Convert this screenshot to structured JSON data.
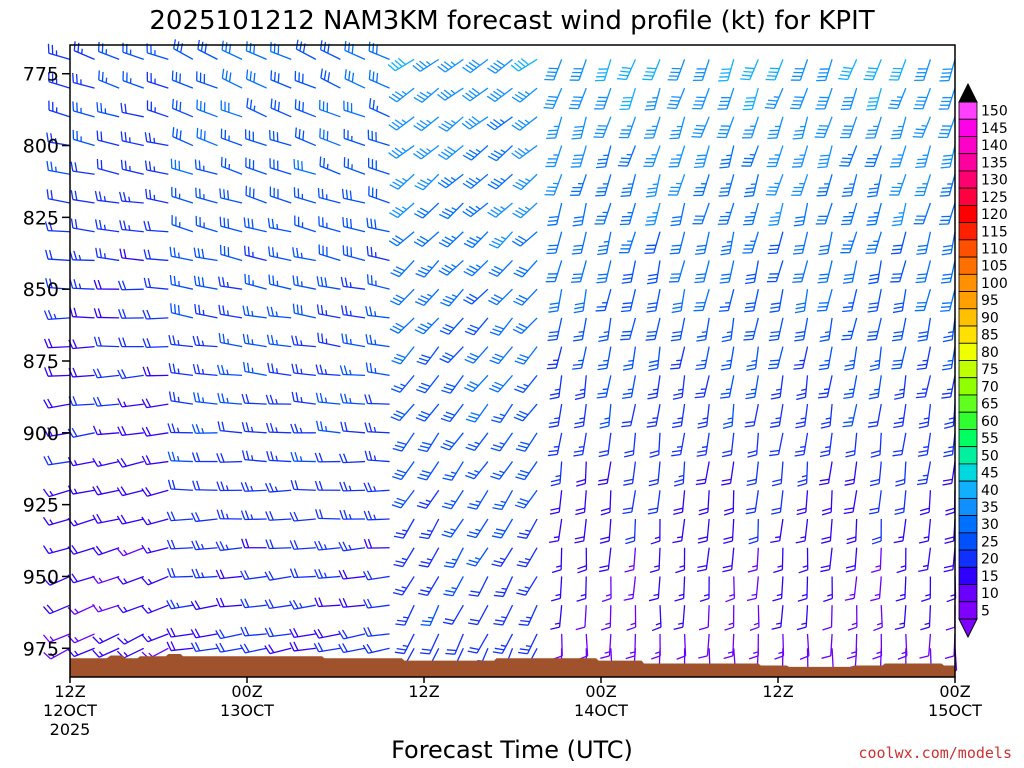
{
  "chart_data": {
    "type": "wind-profile",
    "title": "2025101212 NAM3KM forecast wind profile (kt) for KPIT",
    "xlabel": "Forecast Time (UTC)",
    "ylabel": "",
    "x_hours": [
      0,
      72
    ],
    "ylim": [
      985,
      765
    ],
    "y_ticks": [
      {
        "value": 775,
        "label": "775"
      },
      {
        "value": 800,
        "label": "800"
      },
      {
        "value": 825,
        "label": "825"
      },
      {
        "value": 850,
        "label": "850"
      },
      {
        "value": 875,
        "label": "875"
      },
      {
        "value": 900,
        "label": "900"
      },
      {
        "value": 925,
        "label": "925"
      },
      {
        "value": 950,
        "label": "950"
      },
      {
        "value": 975,
        "label": "975"
      }
    ],
    "x_ticks": [
      {
        "hour": 0,
        "line1": "12Z",
        "line2": "12OCT",
        "line3": "2025"
      },
      {
        "hour": 14.4,
        "line1": "00Z",
        "line2": "13OCT",
        "line3": ""
      },
      {
        "hour": 28.8,
        "line1": "12Z",
        "line2": "",
        "line3": ""
      },
      {
        "hour": 43.2,
        "line1": "00Z",
        "line2": "14OCT",
        "line3": ""
      },
      {
        "hour": 57.6,
        "line1": "12Z",
        "line2": "",
        "line3": ""
      },
      {
        "hour": 72,
        "line1": "00Z",
        "line2": "15OCT",
        "line3": ""
      }
    ],
    "colorbar": {
      "values": [
        5,
        10,
        15,
        20,
        25,
        30,
        35,
        40,
        45,
        50,
        55,
        60,
        65,
        70,
        75,
        80,
        85,
        90,
        95,
        100,
        105,
        110,
        115,
        120,
        125,
        130,
        135,
        140,
        145,
        150
      ],
      "colors": [
        "#8000ff",
        "#6a00ff",
        "#3000ff",
        "#1030ff",
        "#0050ff",
        "#0070ff",
        "#1090ff",
        "#10b0ff",
        "#00d8e0",
        "#00f0a0",
        "#00ff60",
        "#30ff30",
        "#60ff20",
        "#90ff00",
        "#c0ff00",
        "#f0ff00",
        "#ffe000",
        "#ffc000",
        "#ffa000",
        "#ff9000",
        "#ff7000",
        "#ff5000",
        "#ff2000",
        "#ff0000",
        "#ff0040",
        "#ff0070",
        "#ff00a0",
        "#ff00c8",
        "#ff00e8",
        "#ff40ff"
      ]
    },
    "surface_pressure": [
      {
        "hour": 0,
        "p": 978.5
      },
      {
        "hour": 3,
        "p": 978.5
      },
      {
        "hour": 3.3,
        "p": 977.5
      },
      {
        "hour": 4.3,
        "p": 977.5
      },
      {
        "hour": 4.5,
        "p": 978.5
      },
      {
        "hour": 5.5,
        "p": 978.5
      },
      {
        "hour": 5.7,
        "p": 977.8
      },
      {
        "hour": 7.8,
        "p": 977.8
      },
      {
        "hour": 8,
        "p": 977
      },
      {
        "hour": 9,
        "p": 977
      },
      {
        "hour": 9.2,
        "p": 977.8
      },
      {
        "hour": 20.5,
        "p": 977.8
      },
      {
        "hour": 20.7,
        "p": 978.5
      },
      {
        "hour": 27,
        "p": 978.5
      },
      {
        "hour": 27.2,
        "p": 979.3
      },
      {
        "hour": 34.5,
        "p": 979.3
      },
      {
        "hour": 34.7,
        "p": 978.5
      },
      {
        "hour": 42.8,
        "p": 978.5
      },
      {
        "hour": 43,
        "p": 979.3
      },
      {
        "hour": 46.5,
        "p": 979.3
      },
      {
        "hour": 46.7,
        "p": 980.3
      },
      {
        "hour": 56,
        "p": 980.3
      },
      {
        "hour": 56.2,
        "p": 981
      },
      {
        "hour": 58.3,
        "p": 981
      },
      {
        "hour": 58.5,
        "p": 981.5
      },
      {
        "hour": 63.6,
        "p": 981.5
      },
      {
        "hour": 63.8,
        "p": 981
      },
      {
        "hour": 66.1,
        "p": 981
      },
      {
        "hour": 66.3,
        "p": 980.3
      },
      {
        "hour": 70.9,
        "p": 980.3
      },
      {
        "hour": 71.1,
        "p": 981
      },
      {
        "hour": 72,
        "p": 981
      }
    ],
    "barbs": {
      "columns": 37,
      "hour_step": 2,
      "levels": [
        770,
        780,
        790,
        800,
        810,
        820,
        830,
        840,
        850,
        860,
        870,
        880,
        890,
        900,
        910,
        920,
        930,
        940,
        950,
        960,
        970,
        975
      ],
      "regimes": [
        {
          "h0": 0,
          "h1": 10,
          "dir_top": 290,
          "dir_bot": 245,
          "spd_top": 25,
          "spd_bot": 15
        },
        {
          "h0": 10,
          "h1": 28,
          "dir_top": 295,
          "dir_bot": 260,
          "spd_top": 30,
          "spd_bot": 20
        },
        {
          "h0": 28,
          "h1": 40,
          "dir_top": 235,
          "dir_bot": 205,
          "spd_top": 38,
          "spd_bot": 22
        },
        {
          "h0": 40,
          "h1": 72,
          "dir_top": 200,
          "dir_bot": 180,
          "spd_top": 40,
          "spd_bot": 12
        }
      ]
    }
  },
  "credit": "coolwx.com/models"
}
